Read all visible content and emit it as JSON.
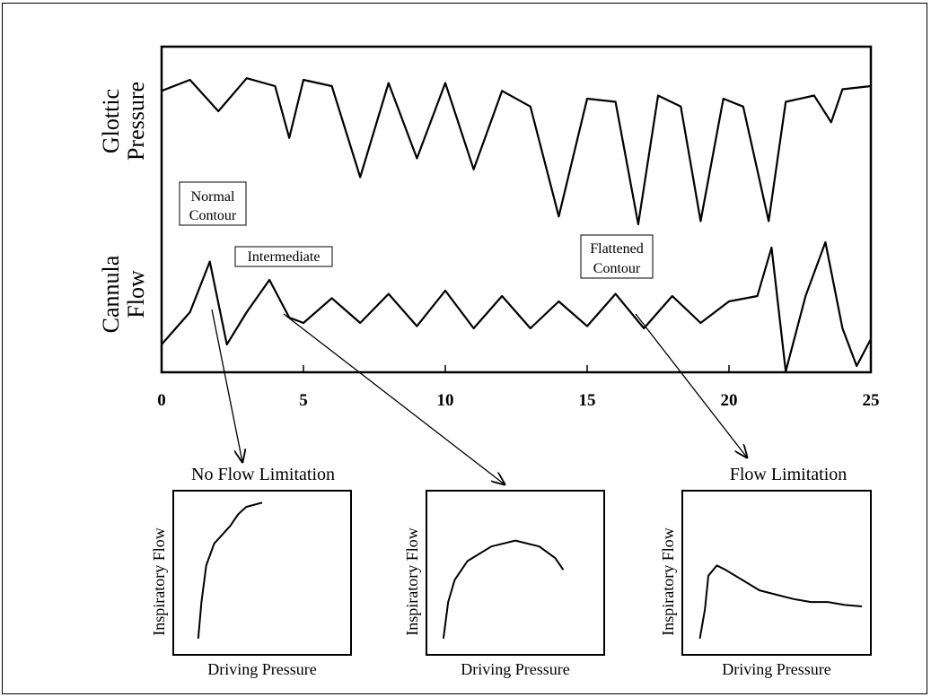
{
  "main_chart": {
    "ylabel_top": [
      "Glottic",
      "Pressure"
    ],
    "ylabel_bottom": [
      "Cannula",
      "Flow"
    ],
    "x_ticks": [
      "0",
      "5",
      "10",
      "15",
      "20",
      "25"
    ],
    "annotations": {
      "normal": [
        "Normal",
        "Contour"
      ],
      "intermediate": "Intermediate",
      "flattened": [
        "Flattened",
        "Contour"
      ]
    }
  },
  "panels": [
    {
      "caption": "No Flow Limitation",
      "xlabel": "Driving Pressure",
      "ylabel": "Inspiratory Flow"
    },
    {
      "caption": "",
      "xlabel": "Driving Pressure",
      "ylabel": "Inspiratory Flow"
    },
    {
      "caption": "Flow Limitation",
      "xlabel": "Driving Pressure",
      "ylabel": "Inspiratory Flow"
    }
  ],
  "chart_data": [
    {
      "type": "line",
      "x_range": [
        0,
        25
      ],
      "x_ticks": [
        0,
        5,
        10,
        15,
        20,
        25
      ],
      "series": [
        {
          "x": [
            0,
            1,
            2,
            3,
            4,
            4.5,
            5,
            6,
            7,
            8,
            9,
            10,
            11,
            12,
            13,
            14,
            15,
            16,
            16.8,
            17.5,
            18.3,
            19,
            19.8,
            20.5,
            21.4,
            22,
            23,
            23.6,
            24,
            25
          ],
          "y": [
            0.85,
            0.92,
            0.72,
            0.93,
            0.88,
            0.55,
            0.92,
            0.88,
            0.3,
            0.9,
            0.42,
            0.9,
            0.35,
            0.85,
            0.75,
            0.05,
            0.8,
            0.78,
            0.0,
            0.82,
            0.75,
            0.02,
            0.8,
            0.75,
            0.02,
            0.78,
            0.82,
            0.65,
            0.86,
            0.88
          ]
        },
        {
          "x": [
            0,
            1,
            1.7,
            2.3,
            3,
            3.8,
            4.5,
            5,
            6,
            7,
            8,
            9,
            10,
            11,
            12,
            13,
            14,
            15,
            16,
            17,
            18,
            19,
            20,
            21,
            21.5,
            22,
            22.7,
            23.4,
            24,
            24.5,
            25
          ],
          "y": [
            0.05,
            0.35,
            0.82,
            0.05,
            0.35,
            0.65,
            0.3,
            0.25,
            0.48,
            0.25,
            0.52,
            0.22,
            0.55,
            0.2,
            0.5,
            0.2,
            0.45,
            0.22,
            0.52,
            0.2,
            0.5,
            0.25,
            0.45,
            0.5,
            0.95,
            -0.2,
            0.5,
            1.0,
            0.2,
            -0.15,
            0.1
          ]
        }
      ]
    },
    {
      "type": "line",
      "series": [
        {
          "x": [
            0.1,
            0.12,
            0.15,
            0.2,
            0.3,
            0.35,
            0.4,
            0.5
          ],
          "y": [
            0.05,
            0.3,
            0.55,
            0.7,
            0.82,
            0.9,
            0.95,
            0.98
          ]
        },
        {
          "x": [
            0.05,
            0.08,
            0.12,
            0.2,
            0.35,
            0.5,
            0.65,
            0.75,
            0.8
          ],
          "y": [
            0.05,
            0.3,
            0.45,
            0.58,
            0.68,
            0.72,
            0.68,
            0.6,
            0.52
          ]
        },
        {
          "x": [
            0.05,
            0.08,
            0.1,
            0.15,
            0.2,
            0.3,
            0.4,
            0.5,
            0.6,
            0.7,
            0.8,
            0.9,
            1.0
          ],
          "y": [
            0.05,
            0.25,
            0.48,
            0.55,
            0.52,
            0.45,
            0.38,
            0.35,
            0.32,
            0.3,
            0.3,
            0.28,
            0.27
          ]
        }
      ]
    }
  ]
}
